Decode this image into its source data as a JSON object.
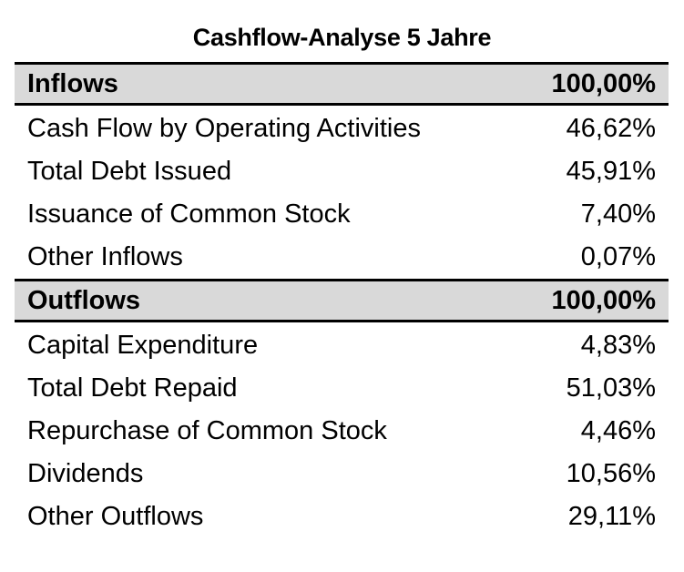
{
  "title": "Cashflow-Analyse 5 Jahre",
  "inflows": {
    "header": {
      "label": "Inflows",
      "value": "100,00%"
    },
    "rows": [
      {
        "label": "Cash Flow by Operating Activities",
        "value": "46,62%"
      },
      {
        "label": "Total Debt Issued",
        "value": "45,91%"
      },
      {
        "label": "Issuance of Common Stock",
        "value": "7,40%"
      },
      {
        "label": "Other Inflows",
        "value": "0,07%"
      }
    ]
  },
  "outflows": {
    "header": {
      "label": "Outflows",
      "value": "100,00%"
    },
    "rows": [
      {
        "label": "Capital Expenditure",
        "value": "4,83%"
      },
      {
        "label": "Total Debt Repaid",
        "value": "51,03%"
      },
      {
        "label": "Repurchase of Common Stock",
        "value": "4,46%"
      },
      {
        "label": "Dividends",
        "value": "10,56%"
      },
      {
        "label": "Other Outflows",
        "value": "29,11%"
      }
    ]
  },
  "colors": {
    "header_background": "#d9d9d9",
    "border": "#000000",
    "text": "#000000"
  }
}
